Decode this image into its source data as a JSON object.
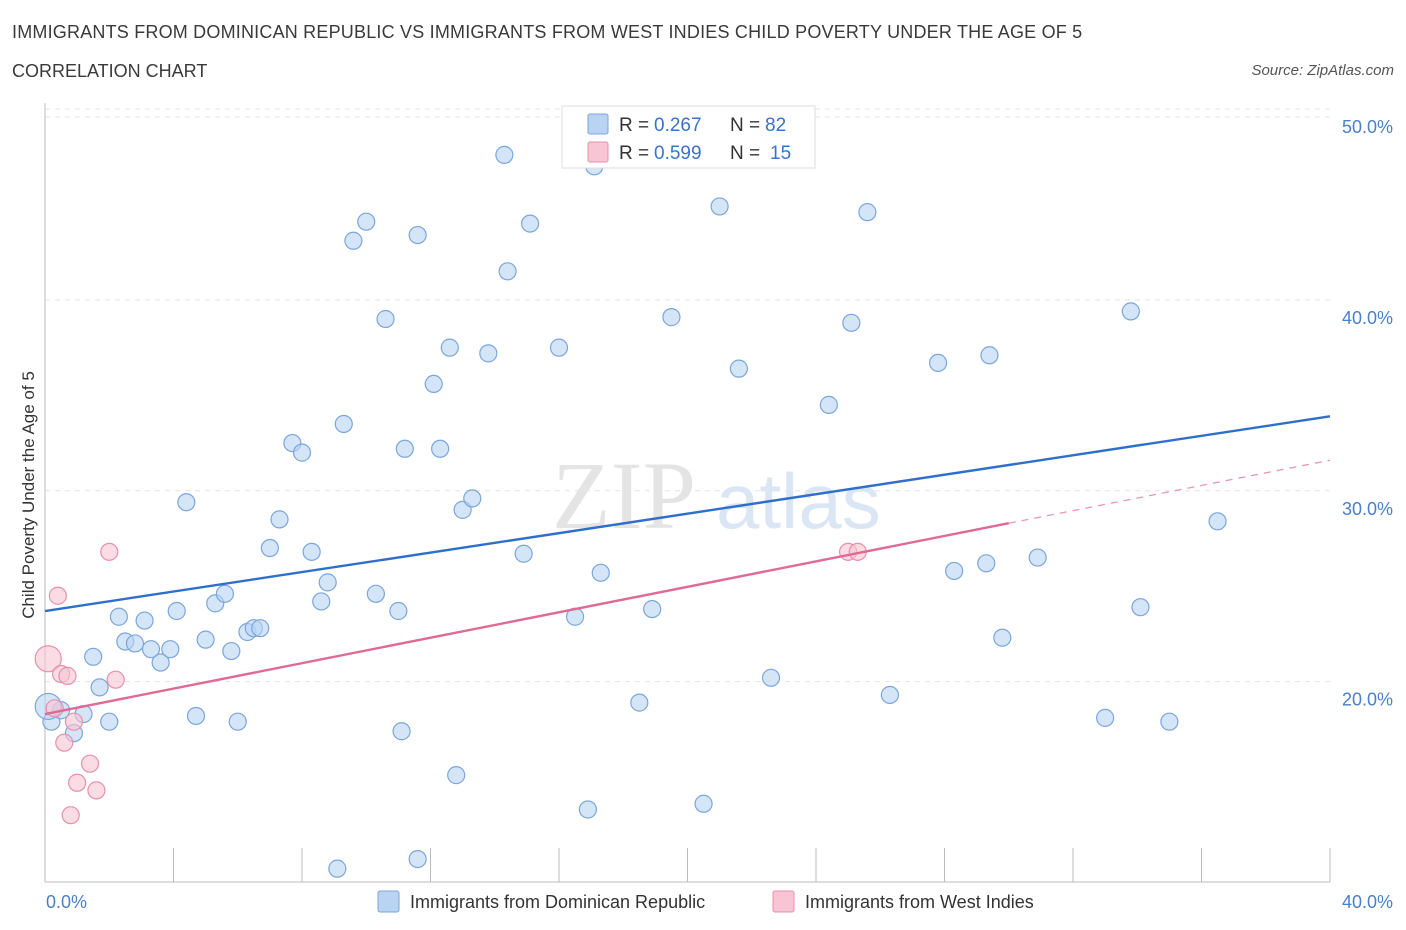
{
  "header": {
    "title": "IMMIGRANTS FROM DOMINICAN REPUBLIC VS IMMIGRANTS FROM WEST INDIES CHILD POVERTY UNDER THE AGE OF 5",
    "subtitle": "CORRELATION CHART",
    "source": "Source: ZipAtlas.com"
  },
  "colors": {
    "blue_fill": "#b9d3f3",
    "blue_stroke": "#7aa6dc",
    "blue_line": "#2f6fcc",
    "pink_fill": "#f8c5d4",
    "pink_stroke": "#e98fab",
    "pink_line": "#e06a93",
    "tick_label": "#4a7fc9"
  },
  "legend": {
    "r_label": "R =",
    "n_label": "N =",
    "rows": [
      {
        "r": "0.267",
        "n": "82",
        "series": "blue"
      },
      {
        "r": "0.599",
        "n": "15",
        "series": "pink"
      }
    ]
  },
  "watermark": {
    "zip": "ZIP",
    "atlas": "atlas"
  },
  "chart_data": {
    "type": "scatter",
    "xlabel": "",
    "ylabel": "Child Poverty Under the Age of 5",
    "xlim": [
      0,
      40
    ],
    "ylim": [
      9.5,
      51
    ],
    "x_tick_labels": [
      {
        "value": 0,
        "label": "0.0%"
      },
      {
        "value": 40,
        "label": "40.0%"
      }
    ],
    "y_tick_labels": [
      {
        "value": 20,
        "label": "20.0%"
      },
      {
        "value": 30,
        "label": "30.0%"
      },
      {
        "value": 40,
        "label": "40.0%"
      },
      {
        "value": 50,
        "label": "50.0%"
      }
    ],
    "grid": true,
    "legend_position": "top-center",
    "series": [
      {
        "name": "Immigrants from Dominican Republic",
        "color": "blue",
        "trend": {
          "x": [
            0,
            40
          ],
          "y": [
            23.7,
            33.9
          ]
        },
        "points": [
          [
            0.2,
            17.9
          ],
          [
            0.5,
            18.5
          ],
          [
            0.9,
            17.3
          ],
          [
            1.2,
            18.3
          ],
          [
            1.5,
            21.3
          ],
          [
            1.7,
            19.7
          ],
          [
            2.0,
            17.9
          ],
          [
            2.3,
            23.4
          ],
          [
            2.5,
            22.1
          ],
          [
            2.8,
            22.0
          ],
          [
            3.1,
            23.2
          ],
          [
            3.3,
            21.7
          ],
          [
            3.6,
            21.0
          ],
          [
            3.9,
            21.7
          ],
          [
            4.1,
            23.7
          ],
          [
            4.4,
            29.4
          ],
          [
            4.7,
            18.2
          ],
          [
            5.0,
            22.2
          ],
          [
            5.3,
            24.1
          ],
          [
            5.6,
            24.6
          ],
          [
            5.8,
            21.6
          ],
          [
            6.0,
            17.9
          ],
          [
            6.3,
            22.6
          ],
          [
            6.5,
            22.8
          ],
          [
            6.7,
            22.8
          ],
          [
            7.0,
            27.0
          ],
          [
            7.3,
            28.5
          ],
          [
            7.7,
            32.5
          ],
          [
            8.0,
            32.0
          ],
          [
            8.3,
            26.8
          ],
          [
            8.6,
            24.2
          ],
          [
            8.8,
            25.2
          ],
          [
            9.1,
            10.2
          ],
          [
            9.3,
            33.5
          ],
          [
            9.6,
            43.1
          ],
          [
            10.0,
            44.1
          ],
          [
            10.3,
            24.6
          ],
          [
            10.6,
            39.0
          ],
          [
            11.0,
            23.7
          ],
          [
            11.1,
            17.4
          ],
          [
            11.2,
            32.2
          ],
          [
            11.6,
            43.4
          ],
          [
            11.6,
            10.7
          ],
          [
            12.1,
            35.6
          ],
          [
            12.3,
            32.2
          ],
          [
            12.6,
            37.5
          ],
          [
            12.8,
            15.1
          ],
          [
            13.0,
            29.0
          ],
          [
            13.3,
            29.6
          ],
          [
            13.8,
            37.2
          ],
          [
            14.3,
            47.6
          ],
          [
            14.4,
            41.5
          ],
          [
            14.9,
            26.7
          ],
          [
            15.1,
            44.0
          ],
          [
            16.0,
            37.5
          ],
          [
            16.5,
            23.4
          ],
          [
            16.9,
            13.3
          ],
          [
            17.1,
            47.0
          ],
          [
            17.3,
            25.7
          ],
          [
            18.5,
            18.9
          ],
          [
            18.9,
            23.8
          ],
          [
            19.5,
            39.1
          ],
          [
            20.5,
            13.6
          ],
          [
            21.0,
            44.9
          ],
          [
            21.6,
            36.4
          ],
          [
            22.6,
            20.2
          ],
          [
            24.4,
            34.5
          ],
          [
            25.1,
            38.8
          ],
          [
            25.6,
            44.6
          ],
          [
            26.3,
            19.3
          ],
          [
            27.8,
            36.7
          ],
          [
            28.3,
            25.8
          ],
          [
            29.4,
            37.1
          ],
          [
            29.8,
            22.3
          ],
          [
            29.3,
            26.2
          ],
          [
            30.9,
            26.5
          ],
          [
            33.0,
            18.1
          ],
          [
            33.8,
            39.4
          ],
          [
            34.1,
            23.9
          ],
          [
            35.0,
            17.9
          ],
          [
            36.5,
            28.4
          ],
          [
            0.1,
            18.7
          ]
        ]
      },
      {
        "name": "Immigrants from West Indies",
        "color": "pink",
        "trend": {
          "x": [
            0,
            30
          ],
          "y": [
            18.3,
            28.3
          ]
        },
        "trend_dashed": {
          "x": [
            30,
            40
          ],
          "y": [
            28.3,
            31.6
          ]
        },
        "points": [
          [
            0.1,
            21.2
          ],
          [
            0.3,
            18.6
          ],
          [
            0.4,
            24.5
          ],
          [
            0.5,
            20.4
          ],
          [
            0.6,
            16.8
          ],
          [
            0.7,
            20.3
          ],
          [
            0.8,
            13.0
          ],
          [
            0.9,
            17.9
          ],
          [
            1.0,
            14.7
          ],
          [
            1.4,
            15.7
          ],
          [
            1.6,
            14.3
          ],
          [
            2.2,
            20.1
          ],
          [
            2.0,
            26.8
          ],
          [
            25.0,
            26.8
          ],
          [
            25.3,
            26.8
          ]
        ]
      }
    ]
  }
}
